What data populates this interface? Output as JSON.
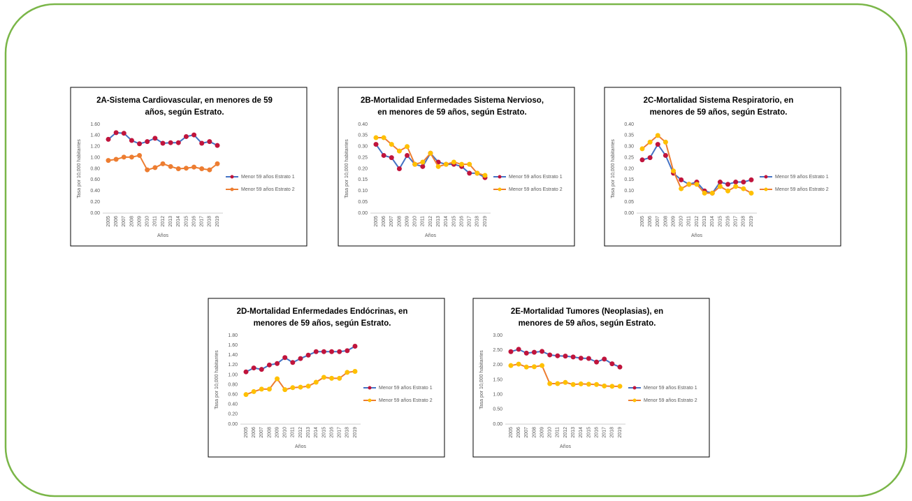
{
  "chart_data": [
    {
      "type": "line",
      "title": [
        "2A-Sistema Cardiovascular, en menores de 59",
        "años, según Estrato."
      ],
      "ylabel": "Tasa por 10,000 habitantes",
      "xlabel": "Años",
      "categories": [
        "2005",
        "2006",
        "2007",
        "2008",
        "2009",
        "2010",
        "2011",
        "2012",
        "2013",
        "2014",
        "2015",
        "2016",
        "2017",
        "2018",
        "2019"
      ],
      "series": [
        {
          "name": "Menor 59 años Estrato 1",
          "color": "#4472c4",
          "marker_color": "#c0143c",
          "values": [
            1.33,
            1.45,
            1.44,
            1.31,
            1.25,
            1.29,
            1.35,
            1.26,
            1.27,
            1.27,
            1.38,
            1.41,
            1.26,
            1.29,
            1.22
          ]
        },
        {
          "name": "Menor 59 años Estrato 2",
          "color": "#ed7d31",
          "marker_color": "#ed7d31",
          "values": [
            0.95,
            0.97,
            1.01,
            1.01,
            1.04,
            0.78,
            0.82,
            0.89,
            0.84,
            0.8,
            0.81,
            0.83,
            0.8,
            0.78,
            0.89
          ]
        }
      ],
      "ylim": [
        0,
        1.6
      ],
      "yticks": [
        {
          "value": 0,
          "label": "0.00"
        },
        {
          "value": 0.2,
          "label": "0.20"
        },
        {
          "value": 0.4,
          "label": "0.40"
        },
        {
          "value": 0.6,
          "label": "0.60"
        },
        {
          "value": 0.8,
          "label": "0.80"
        },
        {
          "value": 1,
          "label": "1.00"
        },
        {
          "value": 1.2,
          "label": "1.20"
        },
        {
          "value": 1.4,
          "label": "1.40"
        },
        {
          "value": 1.6,
          "label": "1.60"
        }
      ],
      "grid": false,
      "legend": "right"
    },
    {
      "type": "line",
      "title": [
        "2B-Mortalidad Enfermedades Sistema Nervioso,",
        "en menores de 59 años, según Estrato."
      ],
      "ylabel": "Tasa por 10,000 habitantes",
      "xlabel": "Años",
      "categories": [
        "2005",
        "2006",
        "2007",
        "2008",
        "2009",
        "2010",
        "2011",
        "2012",
        "2013",
        "2014",
        "2015",
        "2016",
        "2017",
        "2018",
        "2019"
      ],
      "series": [
        {
          "name": "Menor 59 años Estrato 1",
          "color": "#4472c4",
          "marker_color": "#c0143c",
          "values": [
            0.31,
            0.26,
            0.25,
            0.2,
            0.26,
            0.22,
            0.21,
            0.27,
            0.23,
            0.22,
            0.22,
            0.21,
            0.18,
            0.18,
            0.16
          ]
        },
        {
          "name": "Menor 59 años Estrato 2",
          "color": "#ed7d31",
          "marker_color": "#ffc000",
          "values": [
            0.34,
            0.34,
            0.31,
            0.28,
            0.3,
            0.22,
            0.23,
            0.27,
            0.21,
            0.22,
            0.23,
            0.22,
            0.22,
            0.18,
            0.17
          ]
        }
      ],
      "ylim": [
        0,
        0.4
      ],
      "yticks": [
        {
          "value": 0,
          "label": "0.00"
        },
        {
          "value": 0.05,
          "label": "0.05"
        },
        {
          "value": 0.1,
          "label": "0.10"
        },
        {
          "value": 0.15,
          "label": "0.15"
        },
        {
          "value": 0.2,
          "label": "0.20"
        },
        {
          "value": 0.25,
          "label": "0.25"
        },
        {
          "value": 0.3,
          "label": "0.30"
        },
        {
          "value": 0.35,
          "label": "0.35"
        },
        {
          "value": 0.4,
          "label": "0.40"
        }
      ],
      "grid": false,
      "legend": "right"
    },
    {
      "type": "line",
      "title": [
        "2C-Mortalidad Sistema Respiratorio, en",
        "menores de 59 años, según Estrato."
      ],
      "ylabel": "Tasa por 10,000 habitantes",
      "xlabel": "Años",
      "categories": [
        "2005",
        "2006",
        "2007",
        "2008",
        "2009",
        "2010",
        "2011",
        "2012",
        "2013",
        "2014",
        "2015",
        "2016",
        "2017",
        "2018",
        "2019"
      ],
      "series": [
        {
          "name": "Menor 59 años Estrato 1",
          "color": "#4472c4",
          "marker_color": "#c0143c",
          "values": [
            0.24,
            0.25,
            0.31,
            0.26,
            0.18,
            0.15,
            0.13,
            0.14,
            0.1,
            0.09,
            0.14,
            0.13,
            0.14,
            0.14,
            0.15
          ]
        },
        {
          "name": "Menor 59 años Estrato 2",
          "color": "#ed7d31",
          "marker_color": "#ffc000",
          "values": [
            0.29,
            0.32,
            0.35,
            0.32,
            0.19,
            0.11,
            0.13,
            0.13,
            0.09,
            0.09,
            0.12,
            0.1,
            0.12,
            0.11,
            0.09
          ]
        }
      ],
      "ylim": [
        0,
        0.4
      ],
      "yticks": [
        {
          "value": 0,
          "label": "0.00"
        },
        {
          "value": 0.05,
          "label": "0.05"
        },
        {
          "value": 0.1,
          "label": "0.10"
        },
        {
          "value": 0.15,
          "label": "0.15"
        },
        {
          "value": 0.2,
          "label": "0.20"
        },
        {
          "value": 0.25,
          "label": "0.25"
        },
        {
          "value": 0.3,
          "label": "0.30"
        },
        {
          "value": 0.35,
          "label": "0.35"
        },
        {
          "value": 0.4,
          "label": "0.40"
        }
      ],
      "grid": false,
      "legend": "right"
    },
    {
      "type": "line",
      "title": [
        "2D-Mortalidad Enfermedades Endócrinas, en",
        "menores de 59 años, según Estrato."
      ],
      "ylabel": "Tasa por 10,000 habitantes",
      "xlabel": "Años",
      "categories": [
        "2005",
        "2006",
        "2007",
        "2008",
        "2009",
        "2010",
        "2011",
        "2012",
        "2013",
        "2014",
        "2015",
        "2016",
        "2017",
        "2018",
        "2019"
      ],
      "series": [
        {
          "name": "Menor 59 años Estrato 1",
          "color": "#4472c4",
          "marker_color": "#c0143c",
          "values": [
            1.06,
            1.14,
            1.11,
            1.2,
            1.23,
            1.35,
            1.25,
            1.33,
            1.4,
            1.47,
            1.47,
            1.47,
            1.47,
            1.49,
            1.58
          ]
        },
        {
          "name": "Menor 59 años Estrato 2",
          "color": "#ed7d31",
          "marker_color": "#ffc000",
          "values": [
            0.6,
            0.66,
            0.71,
            0.71,
            0.92,
            0.7,
            0.74,
            0.75,
            0.77,
            0.85,
            0.95,
            0.93,
            0.93,
            1.05,
            1.07
          ]
        }
      ],
      "ylim": [
        0,
        1.8
      ],
      "yticks": [
        {
          "value": 0,
          "label": "0.00"
        },
        {
          "value": 0.2,
          "label": "0.20"
        },
        {
          "value": 0.4,
          "label": "0.40"
        },
        {
          "value": 0.6,
          "label": "0.60"
        },
        {
          "value": 0.8,
          "label": "0.80"
        },
        {
          "value": 1,
          "label": "1.00"
        },
        {
          "value": 1.2,
          "label": "1.20"
        },
        {
          "value": 1.4,
          "label": "1.40"
        },
        {
          "value": 1.6,
          "label": "1.60"
        },
        {
          "value": 1.8,
          "label": "1.80"
        }
      ],
      "grid": false,
      "legend": "right"
    },
    {
      "type": "line",
      "title": [
        "2E-Mortalidad Tumores (Neoplasias), en",
        "menores de 59 años, según Estrato."
      ],
      "ylabel": "Tasa por 10,000 habitantes",
      "xlabel": "Años",
      "categories": [
        "2005",
        "2006",
        "2007",
        "2008",
        "2009",
        "2010",
        "2011",
        "2012",
        "2013",
        "2014",
        "2015",
        "2016",
        "2017",
        "2018",
        "2019"
      ],
      "series": [
        {
          "name": "Menor 59 años Estrato 1",
          "color": "#4472c4",
          "marker_color": "#c0143c",
          "values": [
            2.45,
            2.53,
            2.4,
            2.43,
            2.46,
            2.34,
            2.31,
            2.3,
            2.27,
            2.23,
            2.22,
            2.1,
            2.2,
            2.04,
            1.93
          ]
        },
        {
          "name": "Menor 59 años Estrato 2",
          "color": "#ed7d31",
          "marker_color": "#ffc000",
          "values": [
            1.98,
            2.03,
            1.93,
            1.94,
            1.98,
            1.37,
            1.37,
            1.41,
            1.34,
            1.36,
            1.35,
            1.34,
            1.29,
            1.28,
            1.28
          ]
        }
      ],
      "ylim": [
        0,
        3
      ],
      "yticks": [
        {
          "value": 0,
          "label": "0.00"
        },
        {
          "value": 0.5,
          "label": "0.50"
        },
        {
          "value": 1,
          "label": "1.00"
        },
        {
          "value": 1.5,
          "label": "1.50"
        },
        {
          "value": 2,
          "label": "2.00"
        },
        {
          "value": 2.5,
          "label": "2.50"
        },
        {
          "value": 3,
          "label": "3.00"
        }
      ],
      "grid": false,
      "legend": "right"
    }
  ]
}
